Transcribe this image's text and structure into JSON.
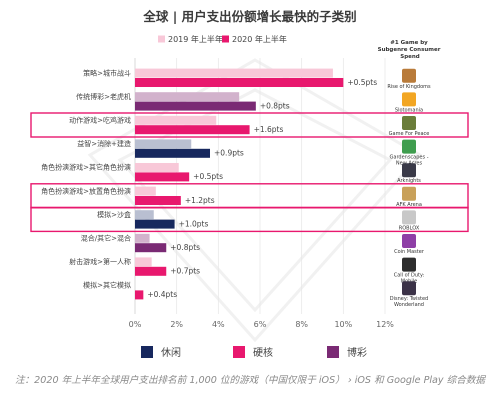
{
  "chart_data": {
    "type": "bar",
    "orientation": "horizontal",
    "title": "全球 | 用户支出份额增长最快的子类别",
    "legend_top": [
      {
        "name": "2019 年上半年",
        "color": "#f8c8d8"
      },
      {
        "name": "2020 年上半年",
        "color": "#e8186e"
      }
    ],
    "side_header": "#1 Game by Subgenre Consumer Spend",
    "categories": [
      "策略>城市战斗",
      "传统博彩>老虎机",
      "动作游戏>吃鸡游戏",
      "益智>消除+建造",
      "角色扮演游戏>其它角色扮演",
      "角色扮演游戏>放置角色扮演",
      "模拟>沙盒",
      "混合/其它>混合",
      "射击游戏>第一人称",
      "模拟>其它模拟"
    ],
    "group_colors": {
      "休闲": "#17285e",
      "硬核": "#e8186e",
      "博彩": "#7a2a74"
    },
    "group_colors_light": {
      "休闲": "#b9bfd1",
      "硬核": "#f8c8d8",
      "博彩": "#d2b2cc"
    },
    "groups": [
      "硬核",
      "博彩",
      "硬核",
      "休闲",
      "硬核",
      "硬核",
      "休闲",
      "博彩",
      "硬核",
      "硬核"
    ],
    "series": [
      {
        "name": "2019 年上半年",
        "values": [
          9.5,
          5.0,
          3.9,
          2.7,
          2.1,
          1.0,
          0.9,
          0.7,
          0.8,
          0.0
        ]
      },
      {
        "name": "2020 年上半年",
        "values": [
          10.0,
          5.8,
          5.5,
          3.6,
          2.6,
          2.2,
          1.9,
          1.5,
          1.5,
          0.4
        ]
      }
    ],
    "change_labels": [
      "+0.5pts",
      "+0.8pts",
      "+1.6pts",
      "+0.9pts",
      "+0.5pts",
      "+1.2pts",
      "+1.0pts",
      "+0.8pts",
      "+0.7pts",
      "+0.4pts"
    ],
    "highlighted": [
      2,
      5,
      6
    ],
    "xlim": [
      0,
      12
    ],
    "xticks": [
      "0%",
      "2%",
      "4%",
      "6%",
      "8%",
      "10%",
      "12%"
    ],
    "games": [
      "Rise of Kingdoms",
      "Slotomania",
      "Game For Peace",
      "Gardenscapes - New Acres",
      "Arknights",
      "AFK Arena",
      "ROBLOX",
      "Coin Master",
      "Call of Duty: Mobile",
      "Disney: Twisted Wonderland"
    ],
    "game_icon_colors": [
      "#b97b3a",
      "#f2a623",
      "#6b7d3a",
      "#3f9d4e",
      "#3a3a48",
      "#c9a15a",
      "#c8c8c8",
      "#8e3fa6",
      "#2d2d2d",
      "#3b3247"
    ],
    "legend_bottom": [
      {
        "name": "休闲",
        "color": "#17285e"
      },
      {
        "name": "硬核",
        "color": "#e8186e"
      },
      {
        "name": "博彩",
        "color": "#7a2a74"
      }
    ],
    "grid": true
  },
  "footnote": "注：2020 年上半年全球用户支出排名前 1,000 位的游戏（中国仅限于 iOS） › iOS 和 Google Play 综合数据"
}
